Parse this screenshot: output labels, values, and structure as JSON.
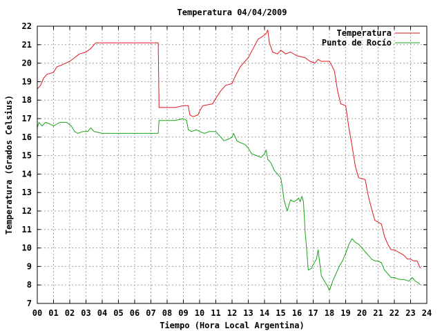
{
  "chart_data": {
    "type": "line",
    "title": "Temperatura 04/04/2009",
    "xlabel": "Tiempo (Hora Local Argentina)",
    "ylabel": "Temperatura (Grados Celsius)",
    "xlim": [
      0,
      24
    ],
    "ylim": [
      7,
      22
    ],
    "xticks": [
      "00",
      "01",
      "02",
      "03",
      "04",
      "05",
      "06",
      "07",
      "08",
      "09",
      "10",
      "11",
      "12",
      "13",
      "14",
      "15",
      "16",
      "17",
      "18",
      "19",
      "20",
      "21",
      "22",
      "23",
      "24"
    ],
    "yticks": [
      7,
      8,
      9,
      10,
      11,
      12,
      13,
      14,
      15,
      16,
      17,
      18,
      19,
      20,
      21,
      22
    ],
    "grid": true,
    "legend_position": "top-right",
    "series": [
      {
        "name": "Temperatura",
        "color": "#e0141e",
        "points": [
          [
            0.0,
            18.6
          ],
          [
            0.2,
            18.8
          ],
          [
            0.4,
            19.2
          ],
          [
            0.6,
            19.4
          ],
          [
            1.0,
            19.5
          ],
          [
            1.2,
            19.8
          ],
          [
            1.5,
            19.9
          ],
          [
            2.0,
            20.1
          ],
          [
            2.3,
            20.3
          ],
          [
            2.6,
            20.5
          ],
          [
            3.0,
            20.6
          ],
          [
            3.3,
            20.8
          ],
          [
            3.6,
            21.1
          ],
          [
            4.0,
            21.1
          ],
          [
            5.0,
            21.1
          ],
          [
            6.0,
            21.1
          ],
          [
            7.0,
            21.1
          ],
          [
            7.45,
            21.1
          ],
          [
            7.5,
            17.6
          ],
          [
            8.0,
            17.6
          ],
          [
            8.5,
            17.6
          ],
          [
            9.0,
            17.7
          ],
          [
            9.3,
            17.7
          ],
          [
            9.4,
            17.2
          ],
          [
            9.6,
            17.1
          ],
          [
            9.9,
            17.2
          ],
          [
            10.0,
            17.4
          ],
          [
            10.2,
            17.7
          ],
          [
            10.8,
            17.8
          ],
          [
            11.0,
            18.1
          ],
          [
            11.3,
            18.5
          ],
          [
            11.6,
            18.8
          ],
          [
            12.0,
            18.9
          ],
          [
            12.2,
            19.3
          ],
          [
            12.5,
            19.8
          ],
          [
            12.8,
            20.1
          ],
          [
            13.0,
            20.3
          ],
          [
            13.3,
            20.8
          ],
          [
            13.6,
            21.3
          ],
          [
            13.8,
            21.4
          ],
          [
            14.1,
            21.6
          ],
          [
            14.2,
            21.8
          ],
          [
            14.3,
            21.1
          ],
          [
            14.5,
            20.6
          ],
          [
            14.8,
            20.5
          ],
          [
            15.0,
            20.7
          ],
          [
            15.3,
            20.5
          ],
          [
            15.6,
            20.6
          ],
          [
            16.0,
            20.4
          ],
          [
            16.5,
            20.3
          ],
          [
            16.8,
            20.1
          ],
          [
            17.1,
            20.0
          ],
          [
            17.3,
            20.2
          ],
          [
            17.5,
            20.1
          ],
          [
            18.0,
            20.1
          ],
          [
            18.3,
            19.6
          ],
          [
            18.5,
            18.5
          ],
          [
            18.7,
            17.8
          ],
          [
            19.0,
            17.7
          ],
          [
            19.2,
            16.5
          ],
          [
            19.4,
            15.5
          ],
          [
            19.6,
            14.4
          ],
          [
            19.8,
            13.8
          ],
          [
            20.2,
            13.7
          ],
          [
            20.4,
            12.8
          ],
          [
            20.6,
            12.1
          ],
          [
            20.8,
            11.5
          ],
          [
            21.0,
            11.4
          ],
          [
            21.2,
            11.3
          ],
          [
            21.4,
            10.6
          ],
          [
            21.6,
            10.2
          ],
          [
            21.8,
            9.9
          ],
          [
            22.0,
            9.9
          ],
          [
            22.2,
            9.8
          ],
          [
            22.4,
            9.7
          ],
          [
            22.6,
            9.6
          ],
          [
            22.8,
            9.4
          ],
          [
            23.0,
            9.4
          ],
          [
            23.2,
            9.3
          ],
          [
            23.4,
            9.3
          ],
          [
            23.5,
            9.1
          ],
          [
            23.6,
            8.9
          ]
        ]
      },
      {
        "name": "Punto de Rocío",
        "color": "#16a316",
        "points": [
          [
            0.0,
            16.5
          ],
          [
            0.1,
            16.8
          ],
          [
            0.3,
            16.6
          ],
          [
            0.5,
            16.8
          ],
          [
            0.8,
            16.7
          ],
          [
            1.0,
            16.6
          ],
          [
            1.2,
            16.7
          ],
          [
            1.4,
            16.8
          ],
          [
            1.8,
            16.8
          ],
          [
            2.1,
            16.6
          ],
          [
            2.3,
            16.3
          ],
          [
            2.5,
            16.2
          ],
          [
            2.8,
            16.3
          ],
          [
            3.1,
            16.3
          ],
          [
            3.3,
            16.5
          ],
          [
            3.5,
            16.3
          ],
          [
            4.0,
            16.2
          ],
          [
            5.0,
            16.2
          ],
          [
            6.0,
            16.2
          ],
          [
            7.0,
            16.2
          ],
          [
            7.45,
            16.2
          ],
          [
            7.5,
            16.9
          ],
          [
            8.0,
            16.9
          ],
          [
            8.5,
            16.9
          ],
          [
            9.0,
            17.0
          ],
          [
            9.2,
            16.9
          ],
          [
            9.3,
            16.4
          ],
          [
            9.5,
            16.3
          ],
          [
            9.8,
            16.4
          ],
          [
            10.0,
            16.3
          ],
          [
            10.3,
            16.2
          ],
          [
            10.6,
            16.3
          ],
          [
            11.0,
            16.3
          ],
          [
            11.3,
            16.0
          ],
          [
            11.5,
            15.8
          ],
          [
            11.8,
            15.9
          ],
          [
            12.0,
            16.0
          ],
          [
            12.1,
            16.2
          ],
          [
            12.3,
            15.8
          ],
          [
            12.5,
            15.7
          ],
          [
            12.8,
            15.6
          ],
          [
            13.0,
            15.4
          ],
          [
            13.2,
            15.1
          ],
          [
            13.5,
            15.0
          ],
          [
            13.8,
            14.9
          ],
          [
            14.0,
            15.1
          ],
          [
            14.1,
            15.3
          ],
          [
            14.2,
            14.8
          ],
          [
            14.4,
            14.6
          ],
          [
            14.6,
            14.2
          ],
          [
            14.8,
            14.0
          ],
          [
            15.0,
            13.8
          ],
          [
            15.1,
            13.3
          ],
          [
            15.2,
            12.6
          ],
          [
            15.4,
            12.0
          ],
          [
            15.6,
            12.6
          ],
          [
            15.8,
            12.5
          ],
          [
            16.0,
            12.6
          ],
          [
            16.1,
            12.7
          ],
          [
            16.2,
            12.5
          ],
          [
            16.3,
            12.8
          ],
          [
            16.4,
            12.5
          ],
          [
            16.5,
            10.9
          ],
          [
            16.6,
            9.9
          ],
          [
            16.7,
            8.8
          ],
          [
            16.9,
            8.9
          ],
          [
            17.0,
            9.1
          ],
          [
            17.2,
            9.4
          ],
          [
            17.3,
            9.9
          ],
          [
            17.5,
            8.5
          ],
          [
            17.7,
            8.2
          ],
          [
            17.9,
            7.9
          ],
          [
            18.0,
            7.7
          ],
          [
            18.2,
            8.2
          ],
          [
            18.4,
            8.6
          ],
          [
            18.6,
            9.0
          ],
          [
            18.8,
            9.3
          ],
          [
            19.0,
            9.7
          ],
          [
            19.2,
            10.2
          ],
          [
            19.4,
            10.5
          ],
          [
            19.6,
            10.3
          ],
          [
            19.8,
            10.2
          ],
          [
            20.0,
            10.0
          ],
          [
            20.2,
            9.8
          ],
          [
            20.4,
            9.6
          ],
          [
            20.6,
            9.4
          ],
          [
            20.8,
            9.3
          ],
          [
            21.0,
            9.3
          ],
          [
            21.2,
            9.2
          ],
          [
            21.4,
            8.8
          ],
          [
            21.6,
            8.6
          ],
          [
            21.8,
            8.4
          ],
          [
            22.0,
            8.4
          ],
          [
            22.3,
            8.3
          ],
          [
            22.6,
            8.3
          ],
          [
            22.9,
            8.2
          ],
          [
            23.1,
            8.4
          ],
          [
            23.3,
            8.2
          ],
          [
            23.5,
            8.1
          ],
          [
            23.6,
            8.0
          ]
        ]
      }
    ]
  }
}
